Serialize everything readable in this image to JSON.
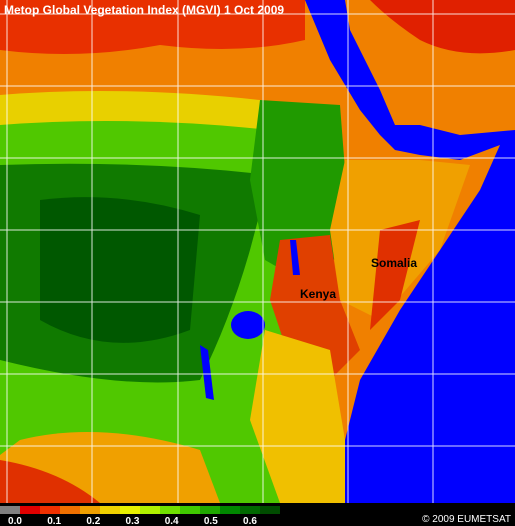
{
  "header": {
    "title": "Metop Global Vegetation Index (MGVI) 1 Oct 2009"
  },
  "places": [
    "Somalia",
    "Kenya"
  ],
  "legend": {
    "labels": [
      "0.0",
      "0.1",
      "0.2",
      "0.3",
      "0.4",
      "0.5",
      "0.6"
    ],
    "colors": [
      "#808080",
      "#e00000",
      "#f03000",
      "#f07000",
      "#f0a000",
      "#f0d000",
      "#e8f000",
      "#b0f000",
      "#70e000",
      "#40c800",
      "#20a800",
      "#008800",
      "#006800",
      "#004c00"
    ]
  },
  "credit": "© 2009 EUMETSAT"
}
